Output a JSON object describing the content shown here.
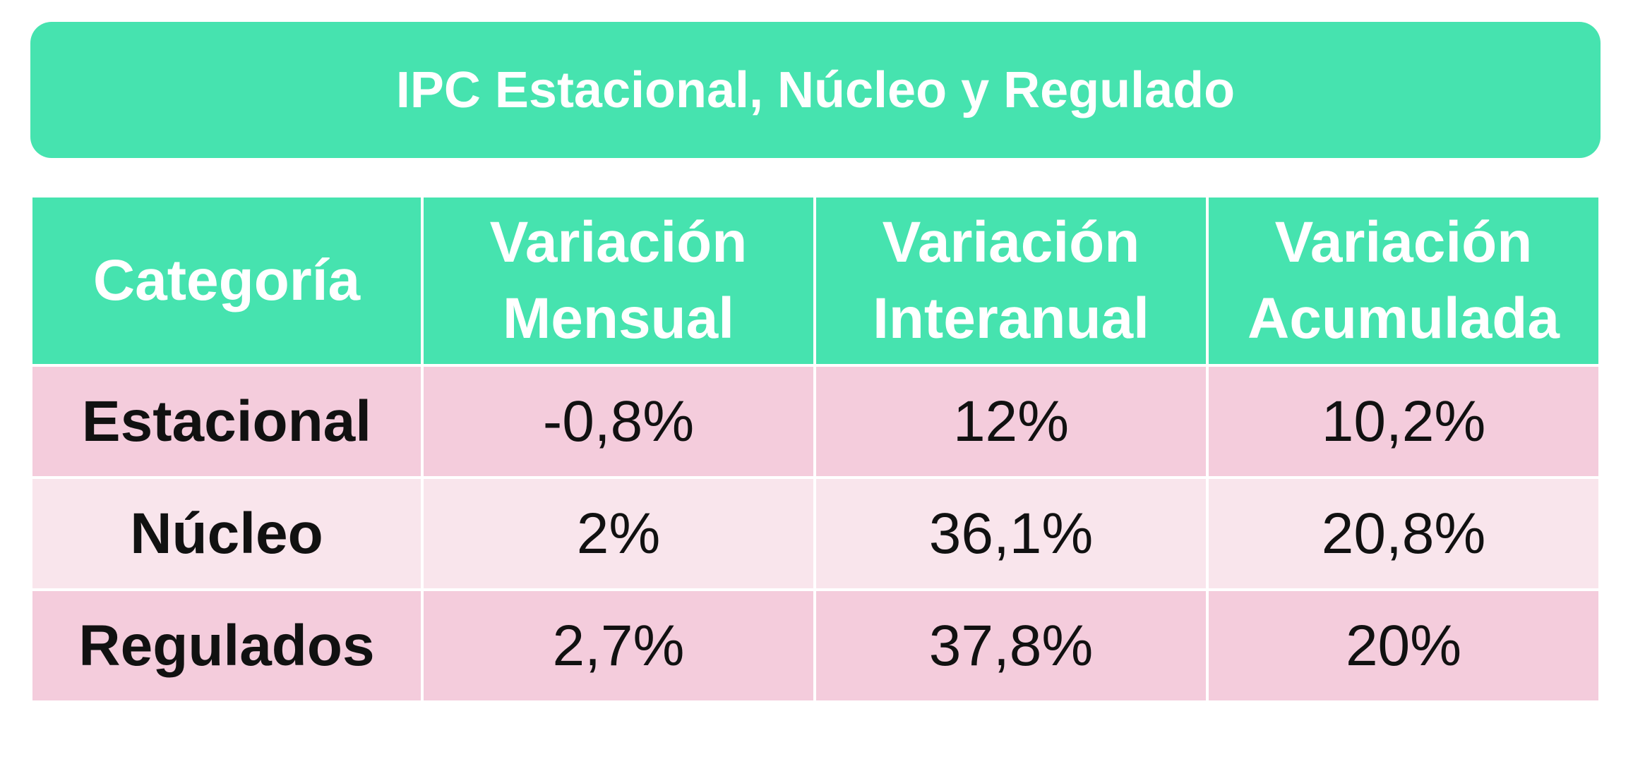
{
  "title": "IPC Estacional, Núcleo y Regulado",
  "colors": {
    "accent": "#46E3AF",
    "row_dark": "#F4CCDC",
    "row_light": "#F9E5EC",
    "header_text": "#FFFFFF",
    "cell_text": "#111111"
  },
  "table": {
    "headers": [
      {
        "line1": "Categoría",
        "line2": ""
      },
      {
        "line1": "Variación",
        "line2": "Mensual"
      },
      {
        "line1": "Variación",
        "line2": "Interanual"
      },
      {
        "line1": "Variación",
        "line2": "Acumulada"
      }
    ],
    "rows": [
      {
        "categoria": "Estacional",
        "mensual": "-0,8%",
        "interanual": "12%",
        "acumulada": "10,2%"
      },
      {
        "categoria": "Núcleo",
        "mensual": "2%",
        "interanual": "36,1%",
        "acumulada": "20,8%"
      },
      {
        "categoria": "Regulados",
        "mensual": "2,7%",
        "interanual": "37,8%",
        "acumulada": "20%"
      }
    ]
  }
}
